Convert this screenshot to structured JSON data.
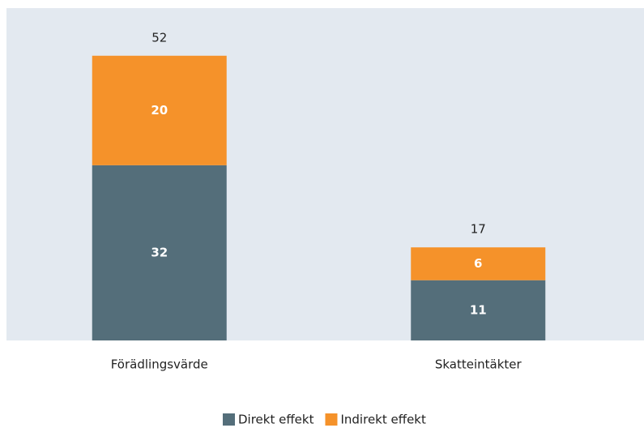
{
  "chart_data": {
    "type": "stacked_bar",
    "categories": [
      "Förädlingsvärde",
      "Skatteintäkter"
    ],
    "series": [
      {
        "name": "Direkt effekt",
        "color": "#546e7a",
        "values": [
          32,
          11
        ]
      },
      {
        "name": "Indirekt effekt",
        "color": "#f5922a",
        "values": [
          20,
          6
        ]
      }
    ],
    "totals": [
      52,
      17
    ],
    "ylim": [
      0,
      60.7
    ],
    "legend": "bottom"
  }
}
